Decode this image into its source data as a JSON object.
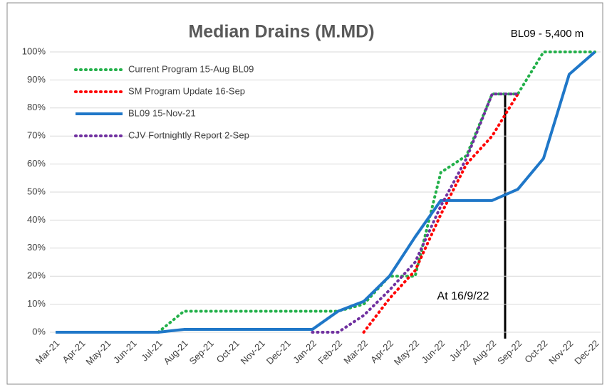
{
  "chart_data": {
    "type": "line",
    "title": "Median Drains (M.MD)",
    "annotations": [
      "BL09 - 5,400 m",
      "At 16/9/22"
    ],
    "categories": [
      "Mar-21",
      "Apr-21",
      "May-21",
      "Jun-21",
      "Jul-21",
      "Aug-21",
      "Sep-21",
      "Oct-21",
      "Nov-21",
      "Dec-21",
      "Jan-22",
      "Feb-22",
      "Mar-22",
      "Apr-22",
      "May-22",
      "Jun-22",
      "Jul-22",
      "Aug-22",
      "Sep-22",
      "Oct-22",
      "Nov-22",
      "Dec-22"
    ],
    "series": [
      {
        "name": "Current Program 15-Aug BL09",
        "color": "#23b04a",
        "style": "dotted",
        "values": [
          null,
          null,
          null,
          null,
          0,
          7.5,
          7.5,
          7.5,
          7.5,
          7.5,
          7.5,
          7.5,
          10,
          20,
          20,
          57,
          63,
          85,
          85,
          100,
          100,
          100
        ]
      },
      {
        "name": "SM Program Update 16-Sep",
        "color": "#ff0000",
        "style": "dotted",
        "values": [
          null,
          null,
          null,
          null,
          null,
          null,
          null,
          null,
          null,
          null,
          null,
          null,
          0,
          12,
          22,
          42,
          60,
          70,
          85,
          null,
          null,
          null
        ]
      },
      {
        "name": "BL09 15-Nov-21",
        "color": "#1f77c8",
        "style": "solid",
        "values": [
          0,
          0,
          0,
          0,
          0,
          1,
          1,
          1,
          1,
          1,
          1,
          7.5,
          11,
          20,
          34,
          47,
          47,
          47,
          51,
          62,
          92,
          100
        ]
      },
      {
        "name": "CJV Fortnightly Report 2-Sep",
        "color": "#7030a0",
        "style": "dotted",
        "values": [
          null,
          null,
          null,
          null,
          null,
          null,
          null,
          null,
          null,
          null,
          0,
          0,
          6,
          15,
          25,
          45,
          62,
          85,
          85,
          null,
          null,
          null
        ]
      }
    ],
    "ylim": [
      0,
      100
    ],
    "yticks": [
      {
        "value": 0,
        "label": "0%"
      },
      {
        "value": 10,
        "label": "10%"
      },
      {
        "value": 20,
        "label": "20%"
      },
      {
        "value": 30,
        "label": "30%"
      },
      {
        "value": 40,
        "label": "40%"
      },
      {
        "value": 50,
        "label": "50%"
      },
      {
        "value": 60,
        "label": "60%"
      },
      {
        "value": 70,
        "label": "70%"
      },
      {
        "value": 80,
        "label": "80%"
      },
      {
        "value": 90,
        "label": "90%"
      },
      {
        "value": 100,
        "label": "100%"
      }
    ],
    "grid": true,
    "legend": "upper left"
  }
}
